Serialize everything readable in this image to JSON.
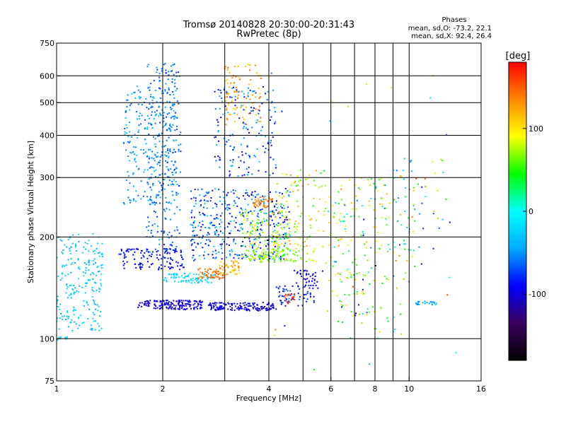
{
  "chart_data": {
    "type": "scatter",
    "title": "Tromsø 20140828 20:30:00-20:31:43",
    "subtitle": "RwPretec (8p)",
    "xlabel": "Frequency [MHz]",
    "ylabel": "Stationary phase Virtual Height [km]",
    "x_scale": "log",
    "y_scale": "log",
    "xlim": [
      1,
      16
    ],
    "ylim": [
      75,
      750
    ],
    "grid": true,
    "x_ticks": [
      1,
      2,
      4,
      6,
      8,
      10,
      16
    ],
    "x_tick_labels": [
      "1",
      "2",
      "4",
      "6",
      "8",
      "10",
      "16"
    ],
    "x_minor_ticks": [
      3,
      5,
      7,
      9
    ],
    "y_ticks": [
      75,
      100,
      200,
      300,
      400,
      500,
      600,
      750
    ],
    "y_tick_labels": [
      "75",
      "100",
      "200",
      "300",
      "400",
      "500",
      "600",
      "750"
    ],
    "y_gridlines": [
      100,
      200,
      300,
      400,
      500,
      600
    ],
    "phase_stats": {
      "heading": "Phases",
      "line1": "mean, sd,O:  -73.2, 22.1",
      "line2": "mean, sd,X:  92.4, 26.4"
    },
    "colorbar": {
      "unit": "[deg]",
      "ticks": [
        100,
        0,
        -100
      ],
      "tick_labels": [
        "100",
        "0",
        "-100"
      ],
      "range": [
        -180,
        180
      ],
      "colormap": [
        "#000000",
        "#3a0060",
        "#0000ff",
        "#00aaff",
        "#00ffff",
        "#00ff00",
        "#ffff00",
        "#ff8800",
        "#ff0000"
      ]
    },
    "clusters": [
      {
        "x": [
          1.0,
          1.35
        ],
        "y": [
          105,
          205
        ],
        "phase": [
          -45,
          -10
        ],
        "n": 220
      },
      {
        "x": [
          1.0,
          1.08
        ],
        "y": [
          99,
          102
        ],
        "phase": [
          -30,
          -20
        ],
        "n": 8
      },
      {
        "x": [
          1.55,
          2.2
        ],
        "y": [
          250,
          560
        ],
        "phase": [
          -65,
          -25
        ],
        "n": 230
      },
      {
        "x": [
          1.8,
          2.25
        ],
        "y": [
          180,
          660
        ],
        "phase": [
          -80,
          -40
        ],
        "n": 260
      },
      {
        "x": [
          1.5,
          2.3
        ],
        "y": [
          160,
          185
        ],
        "phase": [
          -100,
          -80
        ],
        "n": 120
      },
      {
        "x": [
          1.7,
          2.6
        ],
        "y": [
          122,
          130
        ],
        "phase": [
          -110,
          -90
        ],
        "n": 160
      },
      {
        "x": [
          2.7,
          4.2
        ],
        "y": [
          121,
          128
        ],
        "phase": [
          -110,
          -90
        ],
        "n": 150
      },
      {
        "x": [
          2.0,
          2.8
        ],
        "y": [
          146,
          156
        ],
        "phase": [
          -40,
          0
        ],
        "n": 80
      },
      {
        "x": [
          2.5,
          3.0
        ],
        "y": [
          150,
          162
        ],
        "phase": [
          130,
          160
        ],
        "n": 60
      },
      {
        "x": [
          2.9,
          3.3
        ],
        "y": [
          155,
          170
        ],
        "phase": [
          90,
          140
        ],
        "n": 50
      },
      {
        "x": [
          2.4,
          4.6
        ],
        "y": [
          170,
          280
        ],
        "phase": [
          -120,
          -20
        ],
        "n": 420
      },
      {
        "x": [
          3.0,
          3.8
        ],
        "y": [
          430,
          650
        ],
        "phase": [
          100,
          150
        ],
        "n": 90
      },
      {
        "x": [
          2.8,
          4.2
        ],
        "y": [
          300,
          560
        ],
        "phase": [
          -110,
          -30
        ],
        "n": 160
      },
      {
        "x": [
          3.3,
          4.6
        ],
        "y": [
          170,
          240
        ],
        "phase": [
          40,
          110
        ],
        "n": 140
      },
      {
        "x": [
          3.6,
          4.1
        ],
        "y": [
          245,
          265
        ],
        "phase": [
          120,
          160
        ],
        "n": 40
      },
      {
        "x": [
          3.5,
          5.5
        ],
        "y": [
          168,
          185
        ],
        "phase": [
          50,
          90
        ],
        "n": 90
      },
      {
        "x": [
          4.2,
          5.8
        ],
        "y": [
          185,
          320
        ],
        "phase": [
          40,
          130
        ],
        "n": 90
      },
      {
        "x": [
          4.2,
          5.4
        ],
        "y": [
          125,
          145
        ],
        "phase": [
          -100,
          -60
        ],
        "n": 60
      },
      {
        "x": [
          4.4,
          4.8
        ],
        "y": [
          127,
          136
        ],
        "phase": [
          150,
          175
        ],
        "n": 18
      },
      {
        "x": [
          4.7,
          5.7
        ],
        "y": [
          140,
          160
        ],
        "phase": [
          -110,
          -80
        ],
        "n": 40
      },
      {
        "x": [
          5.8,
          8.8
        ],
        "y": [
          115,
          300
        ],
        "phase": [
          20,
          120
        ],
        "n": 130
      },
      {
        "x": [
          6.0,
          9.5
        ],
        "y": [
          100,
          300
        ],
        "phase": [
          -110,
          140
        ],
        "n": 60
      },
      {
        "x": [
          9.0,
          10.4
        ],
        "y": [
          140,
          320
        ],
        "phase": [
          -80,
          140
        ],
        "n": 40
      },
      {
        "x": [
          10.4,
          12.0
        ],
        "y": [
          126,
          129
        ],
        "phase": [
          -20,
          -60
        ],
        "n": 25
      },
      {
        "x": [
          10.0,
          12.5
        ],
        "y": [
          210,
          340
        ],
        "phase": [
          -110,
          160
        ],
        "n": 30
      },
      {
        "x": [
          4.0,
          14.0
        ],
        "y": [
          80,
          640
        ],
        "phase": [
          -120,
          160
        ],
        "n": 40
      }
    ]
  }
}
